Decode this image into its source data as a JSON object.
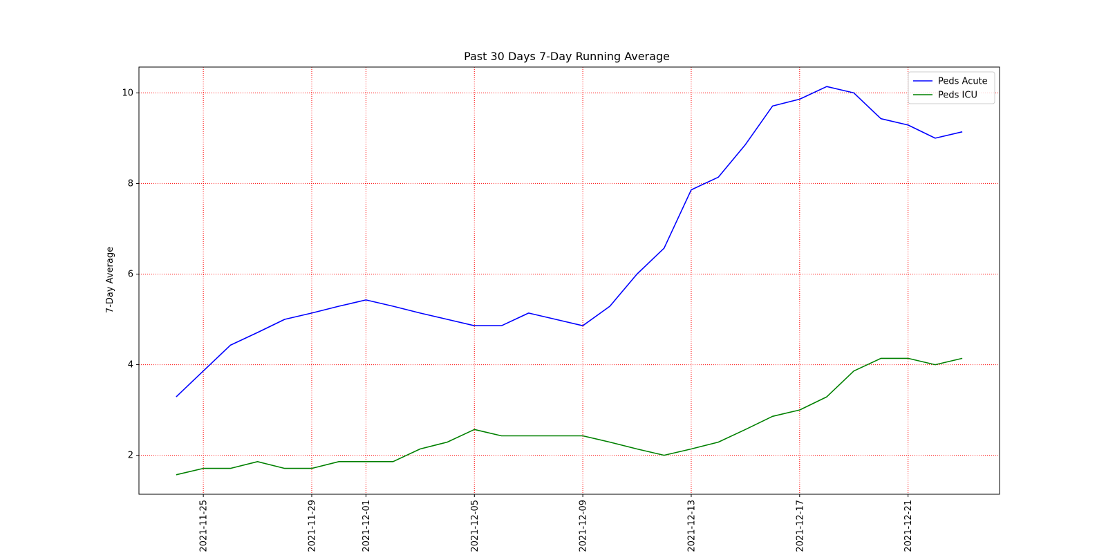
{
  "chart_data": {
    "type": "line",
    "title": "Past 30 Days 7-Day Running Average",
    "xlabel": "",
    "ylabel": "7-Day Average",
    "x": [
      "2021-11-24",
      "2021-11-25",
      "2021-11-26",
      "2021-11-27",
      "2021-11-28",
      "2021-11-29",
      "2021-11-30",
      "2021-12-01",
      "2021-12-02",
      "2021-12-03",
      "2021-12-04",
      "2021-12-05",
      "2021-12-06",
      "2021-12-07",
      "2021-12-08",
      "2021-12-09",
      "2021-12-10",
      "2021-12-11",
      "2021-12-12",
      "2021-12-13",
      "2021-12-14",
      "2021-12-15",
      "2021-12-16",
      "2021-12-17",
      "2021-12-18",
      "2021-12-19",
      "2021-12-20",
      "2021-12-21",
      "2021-12-22",
      "2021-12-23"
    ],
    "series": [
      {
        "name": "Peds Acute",
        "color": "#0000ff",
        "values": [
          3.29,
          3.86,
          4.43,
          4.71,
          5.0,
          5.14,
          5.29,
          5.43,
          5.29,
          5.14,
          5.0,
          4.86,
          4.86,
          5.14,
          5.0,
          4.86,
          5.29,
          6.0,
          6.57,
          7.86,
          8.14,
          8.86,
          9.71,
          9.86,
          10.14,
          10.0,
          9.43,
          9.29,
          9.0,
          9.14
        ]
      },
      {
        "name": "Peds ICU",
        "color": "#008000",
        "values": [
          1.57,
          1.71,
          1.71,
          1.86,
          1.71,
          1.71,
          1.86,
          1.86,
          1.86,
          2.14,
          2.29,
          2.57,
          2.43,
          2.43,
          2.43,
          2.43,
          2.29,
          2.14,
          2.0,
          2.14,
          2.29,
          2.57,
          2.86,
          3.0,
          3.29,
          3.86,
          4.14,
          4.14,
          4.0,
          4.14
        ]
      }
    ],
    "x_ticks": [
      "2021-11-25",
      "2021-11-29",
      "2021-12-01",
      "2021-12-05",
      "2021-12-09",
      "2021-12-13",
      "2021-12-17",
      "2021-12-21"
    ],
    "y_ticks": [
      2,
      4,
      6,
      8,
      10
    ],
    "ylim": [
      1.14,
      10.57
    ],
    "xlim": [
      "2021-11-22T15:00",
      "2021-12-24T09:00"
    ],
    "grid": true,
    "grid_color": "#ff0000",
    "legend_position": "top-right"
  }
}
